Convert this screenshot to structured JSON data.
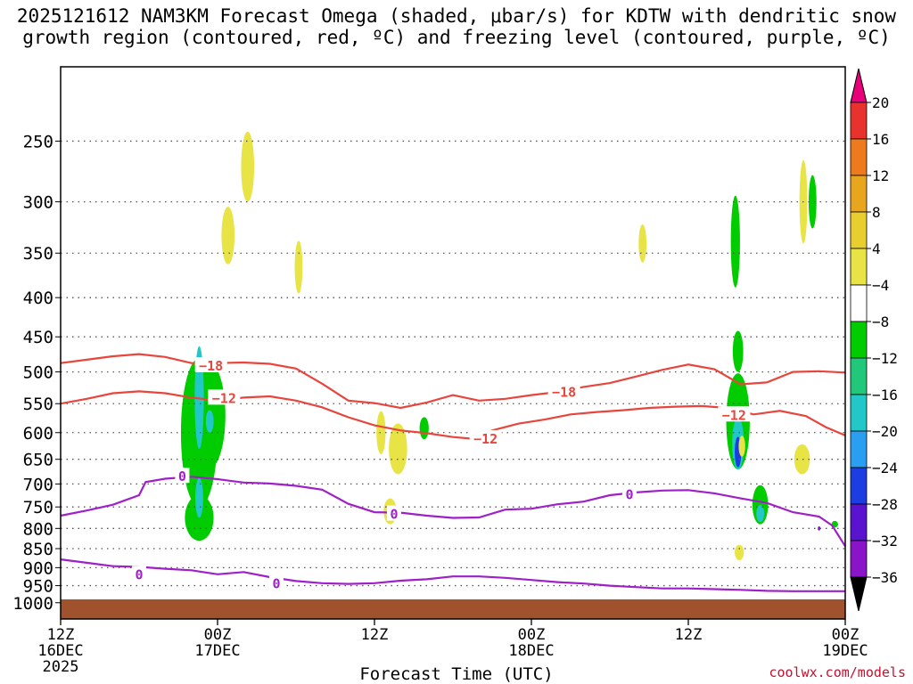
{
  "title": {
    "line1": "2025121612 NAM3KM Forecast Omega (shaded, μbar/s) for KDTW with dendritic snow",
    "line2": "growth region (contoured, red, ºC) and freezing level (contoured, purple, ºC)"
  },
  "credit": "coolwx.com/models",
  "chart_data": {
    "type": "contour",
    "x_axis": {
      "label": "Forecast Time (UTC)",
      "ticks": [
        {
          "line1": "12Z",
          "line2": "16DEC",
          "line3": "2025",
          "hours": 0
        },
        {
          "line1": "00Z",
          "line2": "17DEC",
          "line3": "",
          "hours": 12
        },
        {
          "line1": "12Z",
          "line2": "",
          "line3": "",
          "hours": 24
        },
        {
          "line1": "00Z",
          "line2": "18DEC",
          "line3": "",
          "hours": 36
        },
        {
          "line1": "12Z",
          "line2": "",
          "line3": "",
          "hours": 48
        },
        {
          "line1": "00Z",
          "line2": "19DEC",
          "line3": "",
          "hours": 60
        }
      ]
    },
    "y_axis": {
      "label": "",
      "scale": "log-pressure",
      "inverted": true,
      "range": [
        1050,
        200
      ],
      "ticks": [
        250,
        300,
        350,
        400,
        450,
        500,
        550,
        600,
        650,
        700,
        750,
        800,
        850,
        900,
        950,
        1000
      ]
    },
    "grid": true,
    "colorbar": {
      "units": "μbar/s",
      "labels": [
        "20",
        "16",
        "12",
        "8",
        "4",
        "−4",
        "−8",
        "−12",
        "−16",
        "−20",
        "−24",
        "−28",
        "−32",
        "−36"
      ],
      "colors": [
        "#e8007a",
        "#e8322e",
        "#ee7a1e",
        "#e8a61e",
        "#e8ce2e",
        "#e8e446",
        "#ffffff",
        "#00cc00",
        "#22c87a",
        "#22c8c8",
        "#2a9ef0",
        "#1c3ee0",
        "#5a14d0",
        "#8a14c8",
        "#a814c0",
        "#a0a0a0",
        "#000000"
      ]
    },
    "contours": [
      {
        "color": "#e8453c",
        "label": "−18",
        "label_at": [
          {
            "t": 11.5,
            "p": 490
          },
          {
            "t": 38.5,
            "p": 530
          }
        ],
        "points": [
          [
            0,
            487
          ],
          [
            2,
            482
          ],
          [
            4,
            477
          ],
          [
            6,
            474
          ],
          [
            8,
            478
          ],
          [
            10,
            487
          ],
          [
            12,
            487
          ],
          [
            14,
            486
          ],
          [
            16,
            488
          ],
          [
            18,
            495
          ],
          [
            20,
            518
          ],
          [
            22,
            545
          ],
          [
            24,
            549
          ],
          [
            26,
            557
          ],
          [
            28,
            548
          ],
          [
            30,
            536
          ],
          [
            32,
            545
          ],
          [
            34,
            542
          ],
          [
            36,
            536
          ],
          [
            38,
            531
          ],
          [
            40,
            523
          ],
          [
            42,
            517
          ],
          [
            44,
            507
          ],
          [
            46,
            497
          ],
          [
            48,
            489
          ],
          [
            50,
            496
          ],
          [
            52,
            519
          ],
          [
            54,
            516
          ],
          [
            56,
            500
          ],
          [
            58,
            499
          ],
          [
            60,
            501
          ]
        ]
      },
      {
        "color": "#e8453c",
        "label": "−12",
        "label_at": [
          {
            "t": 12.5,
            "p": 540
          },
          {
            "t": 32.5,
            "p": 610
          },
          {
            "t": 51.5,
            "p": 568
          }
        ],
        "points": [
          [
            0,
            550
          ],
          [
            2,
            542
          ],
          [
            4,
            533
          ],
          [
            6,
            530
          ],
          [
            8,
            533
          ],
          [
            10,
            540
          ],
          [
            12,
            545
          ],
          [
            14,
            540
          ],
          [
            16,
            538
          ],
          [
            18,
            545
          ],
          [
            20,
            556
          ],
          [
            22,
            573
          ],
          [
            24,
            587
          ],
          [
            26,
            596
          ],
          [
            28,
            601
          ],
          [
            30,
            608
          ],
          [
            31.5,
            611
          ],
          [
            33,
            596
          ],
          [
            35,
            584
          ],
          [
            37,
            577
          ],
          [
            39,
            568
          ],
          [
            41,
            564
          ],
          [
            43,
            561
          ],
          [
            45,
            557
          ],
          [
            47,
            555
          ],
          [
            49,
            554
          ],
          [
            51,
            557
          ],
          [
            53,
            568
          ],
          [
            55,
            562
          ],
          [
            57,
            571
          ],
          [
            58.5,
            590
          ],
          [
            60,
            605
          ]
        ]
      },
      {
        "color": "#a020c8",
        "label": "0",
        "label_at": [
          {
            "t": 9.3,
            "p": 683
          },
          {
            "t": 25.5,
            "p": 765
          },
          {
            "t": 43.5,
            "p": 721
          }
        ],
        "points": [
          [
            0,
            770
          ],
          [
            2,
            758
          ],
          [
            4,
            745
          ],
          [
            6,
            724
          ],
          [
            6.5,
            696
          ],
          [
            8,
            689
          ],
          [
            10,
            685
          ],
          [
            12,
            690
          ],
          [
            14,
            697
          ],
          [
            16,
            699
          ],
          [
            18,
            704
          ],
          [
            20,
            712
          ],
          [
            22,
            743
          ],
          [
            24,
            762
          ],
          [
            26,
            763
          ],
          [
            28,
            770
          ],
          [
            30,
            775
          ],
          [
            32,
            774
          ],
          [
            34,
            756
          ],
          [
            36,
            754
          ],
          [
            38,
            744
          ],
          [
            40,
            738
          ],
          [
            42,
            724
          ],
          [
            44,
            718
          ],
          [
            46,
            714
          ],
          [
            48,
            713
          ],
          [
            50,
            720
          ],
          [
            52,
            731
          ],
          [
            54,
            741
          ],
          [
            56,
            762
          ],
          [
            58,
            772
          ],
          [
            59,
            793
          ],
          [
            60,
            844
          ]
        ]
      },
      {
        "color": "#a020c8",
        "label": "0",
        "label_at": [
          {
            "t": 6.0,
            "p": 917
          },
          {
            "t": 16.5,
            "p": 942
          }
        ],
        "points": [
          [
            0,
            878
          ],
          [
            2,
            887
          ],
          [
            4,
            896
          ],
          [
            6,
            898
          ],
          [
            8,
            903
          ],
          [
            10,
            907
          ],
          [
            12,
            918
          ],
          [
            14,
            912
          ],
          [
            16,
            926
          ],
          [
            18,
            937
          ],
          [
            20,
            943
          ],
          [
            22,
            945
          ],
          [
            24,
            943
          ],
          [
            26,
            936
          ],
          [
            28,
            932
          ],
          [
            30,
            924
          ],
          [
            32,
            924
          ],
          [
            34,
            928
          ],
          [
            36,
            934
          ],
          [
            38,
            940
          ],
          [
            40,
            944
          ],
          [
            42,
            950
          ],
          [
            44,
            954
          ],
          [
            46,
            958
          ],
          [
            48,
            958
          ],
          [
            50,
            960
          ],
          [
            52,
            962
          ],
          [
            54,
            965
          ],
          [
            56,
            966
          ],
          [
            58,
            966
          ],
          [
            60,
            966
          ]
        ]
      }
    ],
    "terrain": {
      "color": "#a0522d",
      "from_pressure": 990
    }
  }
}
